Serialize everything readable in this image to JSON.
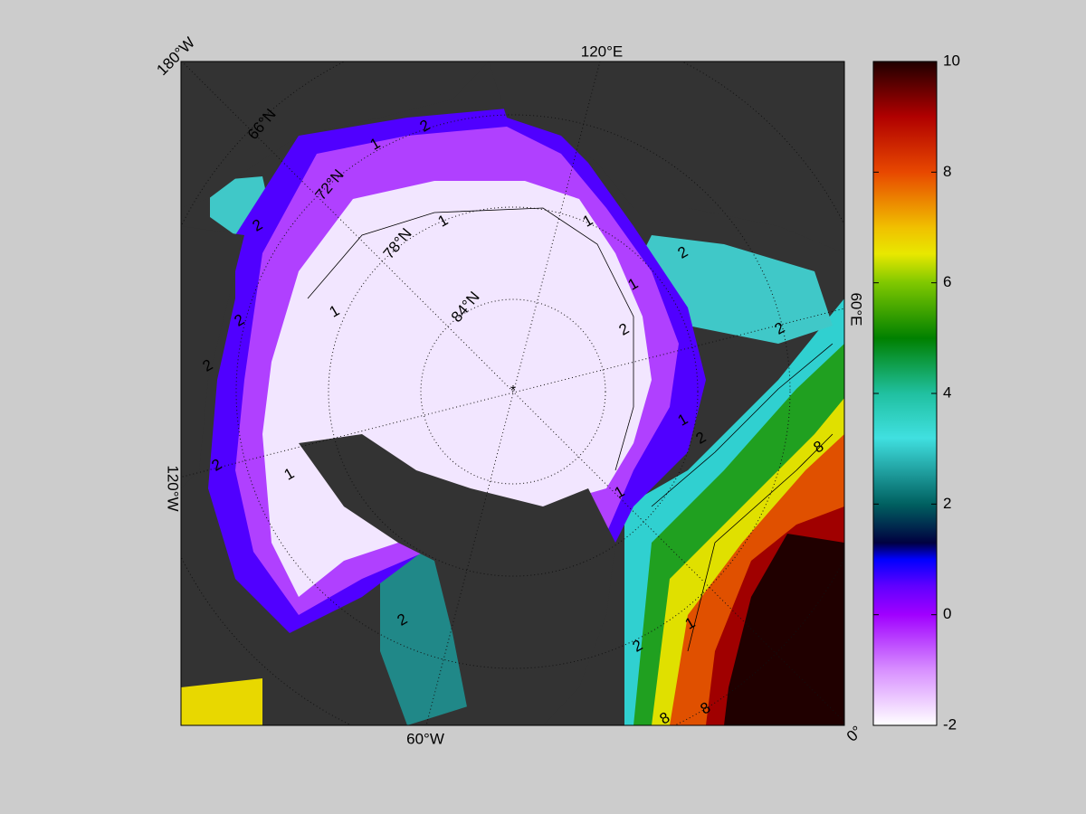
{
  "map": {
    "longitude_labels": [
      "180°W",
      "120°E",
      "60°E",
      "0°",
      "60°W",
      "120°W"
    ],
    "latitude_labels": [
      "66°N",
      "72°N",
      "78°N",
      "84°N"
    ],
    "contour_labels": [
      1,
      2,
      2,
      1,
      1,
      2,
      2,
      1,
      1,
      2,
      2,
      2,
      1,
      2,
      1,
      2,
      2,
      8,
      8,
      8,
      2,
      1,
      1
    ]
  },
  "colorbar": {
    "lim": [
      -2,
      10
    ],
    "ticks": [
      -2,
      0,
      2,
      4,
      6,
      8,
      10
    ]
  }
}
